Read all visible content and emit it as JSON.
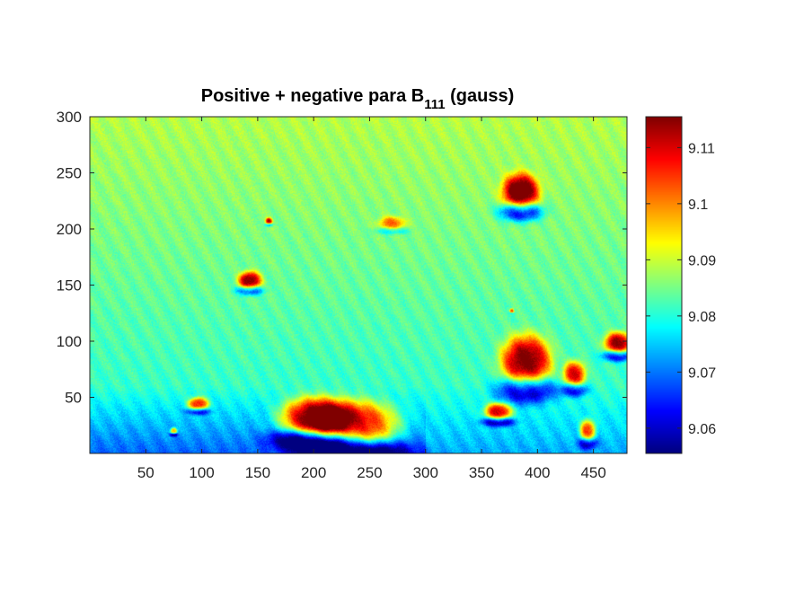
{
  "chart_data": {
    "type": "heatmap",
    "title": "Positive + negative para B",
    "title_subscript": "111",
    "title_suffix": " (gauss)",
    "colormap": "jet",
    "x_range": [
      0,
      480
    ],
    "y_range": [
      0,
      300
    ],
    "x_ticks": [
      50,
      100,
      150,
      200,
      250,
      300,
      350,
      400,
      450
    ],
    "y_ticks": [
      50,
      100,
      150,
      200,
      250,
      300
    ],
    "colorbar": {
      "range": [
        9.0555,
        9.1155
      ],
      "ticks": [
        9.06,
        9.07,
        9.08,
        9.09,
        9.1,
        9.11
      ],
      "tick_labels": [
        "9.06",
        "9.07",
        "9.08",
        "9.09",
        "9.1",
        "9.11"
      ]
    },
    "background_value": 9.084,
    "features": [
      {
        "x": 385,
        "y": 233,
        "rx": 16,
        "ry": 16,
        "value": 9.118,
        "kind": "dipole",
        "neg_value": 9.058
      },
      {
        "x": 390,
        "y": 82,
        "rx": 22,
        "ry": 23,
        "value": 9.118,
        "kind": "dipole",
        "neg_value": 9.06
      },
      {
        "x": 235,
        "y": 25,
        "rx": 40,
        "ry": 22,
        "value": 9.118,
        "kind": "dipole",
        "neg_value": 9.056
      },
      {
        "x": 200,
        "y": 32,
        "rx": 30,
        "ry": 18,
        "value": 9.118,
        "kind": "dipole",
        "neg_value": 9.056
      },
      {
        "x": 143,
        "y": 154,
        "rx": 10,
        "ry": 8,
        "value": 9.116,
        "kind": "dipole",
        "neg_value": 9.066
      },
      {
        "x": 97,
        "y": 44,
        "rx": 9,
        "ry": 6,
        "value": 9.113,
        "kind": "dipole",
        "neg_value": 9.068
      },
      {
        "x": 365,
        "y": 37,
        "rx": 12,
        "ry": 8,
        "value": 9.116,
        "kind": "dipole",
        "neg_value": 9.062
      },
      {
        "x": 433,
        "y": 70,
        "rx": 10,
        "ry": 12,
        "value": 9.112,
        "kind": "dipole",
        "neg_value": 9.064
      },
      {
        "x": 472,
        "y": 98,
        "rx": 12,
        "ry": 10,
        "value": 9.116,
        "kind": "dipole",
        "neg_value": 9.062
      },
      {
        "x": 445,
        "y": 20,
        "rx": 7,
        "ry": 10,
        "value": 9.112,
        "kind": "dipole",
        "neg_value": 9.066
      },
      {
        "x": 270,
        "y": 205,
        "rx": 12,
        "ry": 6,
        "value": 9.1,
        "kind": "dipole",
        "neg_value": 9.075
      },
      {
        "x": 160,
        "y": 207,
        "rx": 3,
        "ry": 3,
        "value": 9.11,
        "kind": "dipole",
        "neg_value": 9.07
      },
      {
        "x": 75,
        "y": 20,
        "rx": 3,
        "ry": 3,
        "value": 9.11,
        "kind": "dipole",
        "neg_value": 9.066
      },
      {
        "x": 377,
        "y": 127,
        "rx": 2,
        "ry": 2,
        "value": 9.105,
        "kind": "dipole",
        "neg_value": 9.078
      }
    ]
  }
}
